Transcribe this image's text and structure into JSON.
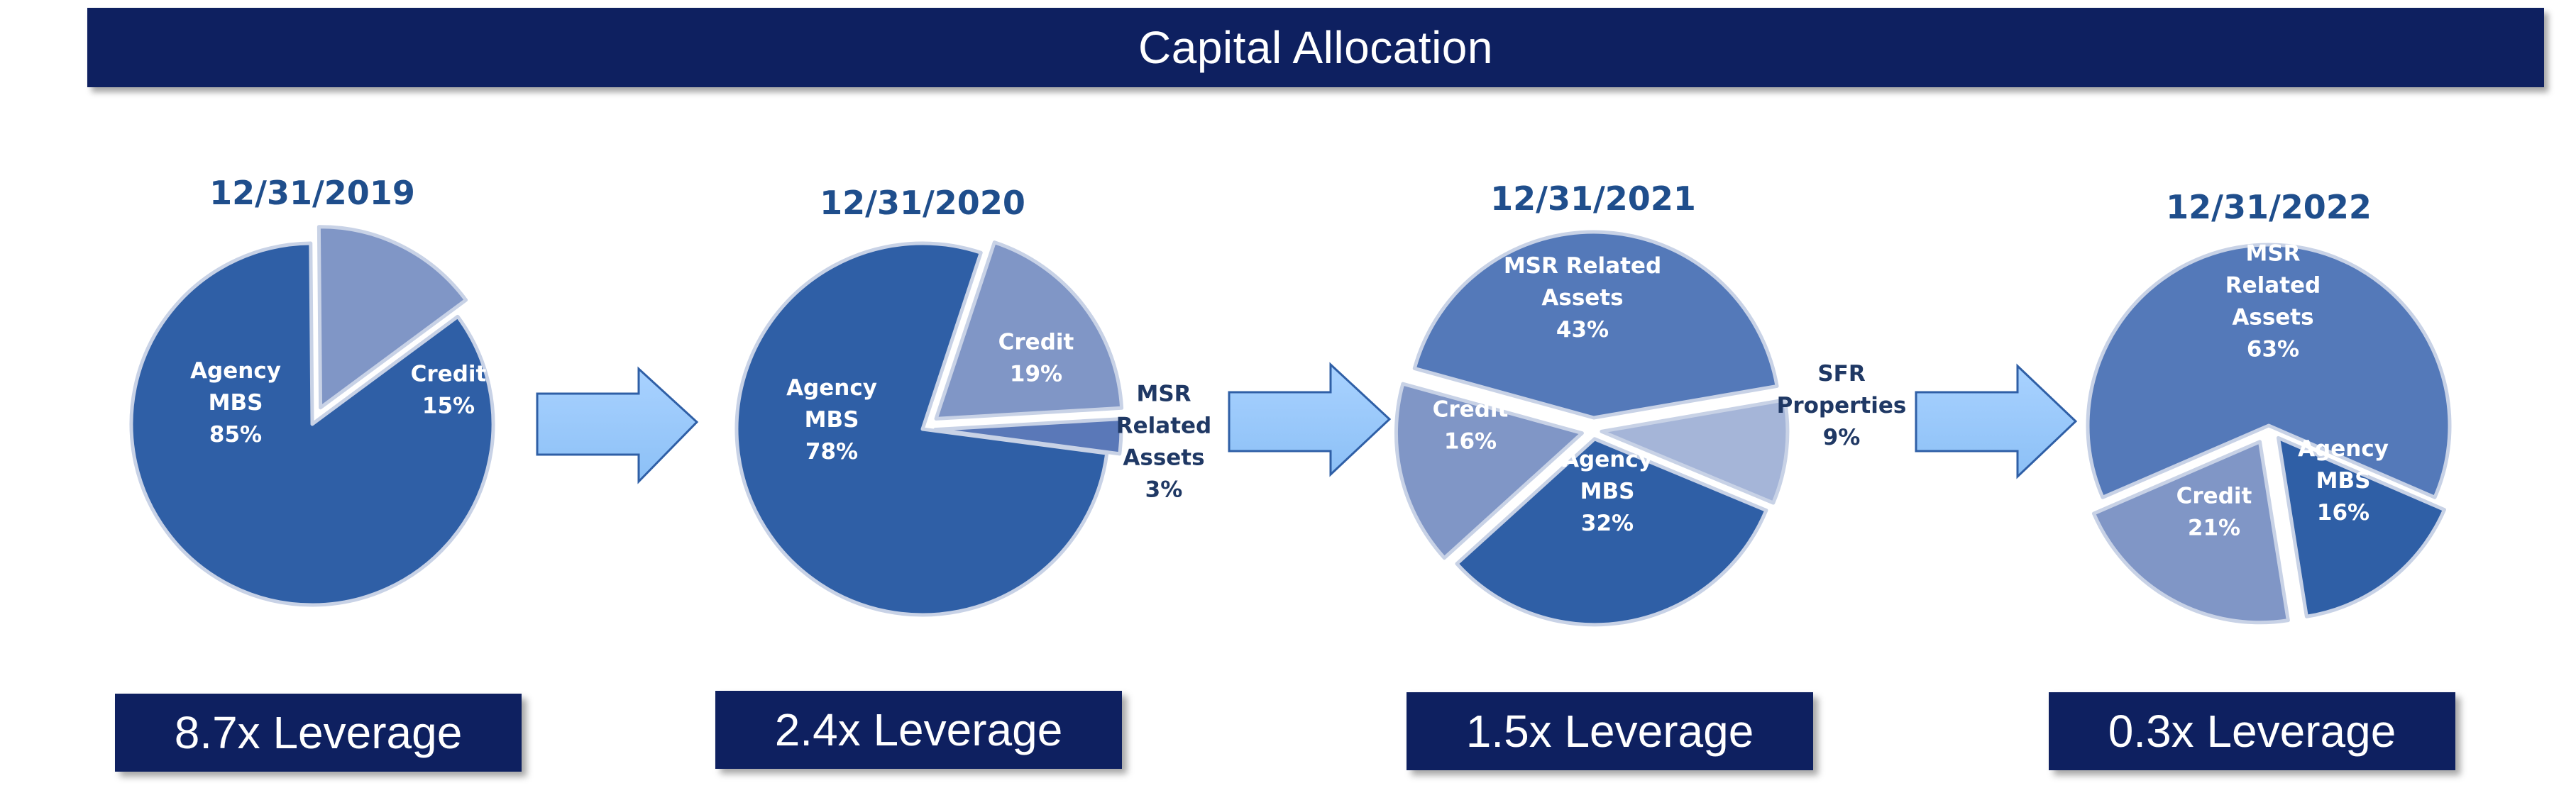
{
  "title": "Capital Allocation",
  "chart_data": [
    {
      "type": "pie",
      "title": "12/31/2019",
      "slices": [
        {
          "label": "Agency MBS",
          "value": 85,
          "pct_text": "85%",
          "color": "#2f5fa6"
        },
        {
          "label": "Credit",
          "value": 15,
          "pct_text": "15%",
          "color": "#8096c6"
        }
      ],
      "leverage": "8.7x Leverage"
    },
    {
      "type": "pie",
      "title": "12/31/2020",
      "slices": [
        {
          "label": "Agency MBS",
          "value": 78,
          "pct_text": "78%",
          "color": "#2f5fa6"
        },
        {
          "label": "Credit",
          "value": 19,
          "pct_text": "19%",
          "color": "#8096c6"
        },
        {
          "label": "MSR Related Assets",
          "value": 3,
          "pct_text": "3%",
          "color": "#5a78b8"
        }
      ],
      "leverage": "2.4x Leverage"
    },
    {
      "type": "pie",
      "title": "12/31/2021",
      "slices": [
        {
          "label": "MSR Related Assets",
          "value": 43,
          "pct_text": "43%",
          "color": "#5479b9"
        },
        {
          "label": "SFR Properties",
          "value": 9,
          "pct_text": "9%",
          "color": "#a5b5d8"
        },
        {
          "label": "Agency MBS",
          "value": 32,
          "pct_text": "32%",
          "color": "#2f5fa6"
        },
        {
          "label": "Credit",
          "value": 16,
          "pct_text": "16%",
          "color": "#8096c6"
        }
      ],
      "leverage": "1.5x Leverage"
    },
    {
      "type": "pie",
      "title": "12/31/2022",
      "slices": [
        {
          "label": "MSR Related Assets",
          "value": 63,
          "pct_text": "63%",
          "color": "#5479b9"
        },
        {
          "label": "Agency MBS",
          "value": 16,
          "pct_text": "16%",
          "color": "#2f5fa6"
        },
        {
          "label": "Credit",
          "value": 21,
          "pct_text": "21%",
          "color": "#8096c6"
        }
      ],
      "leverage": "0.3x Leverage"
    }
  ]
}
